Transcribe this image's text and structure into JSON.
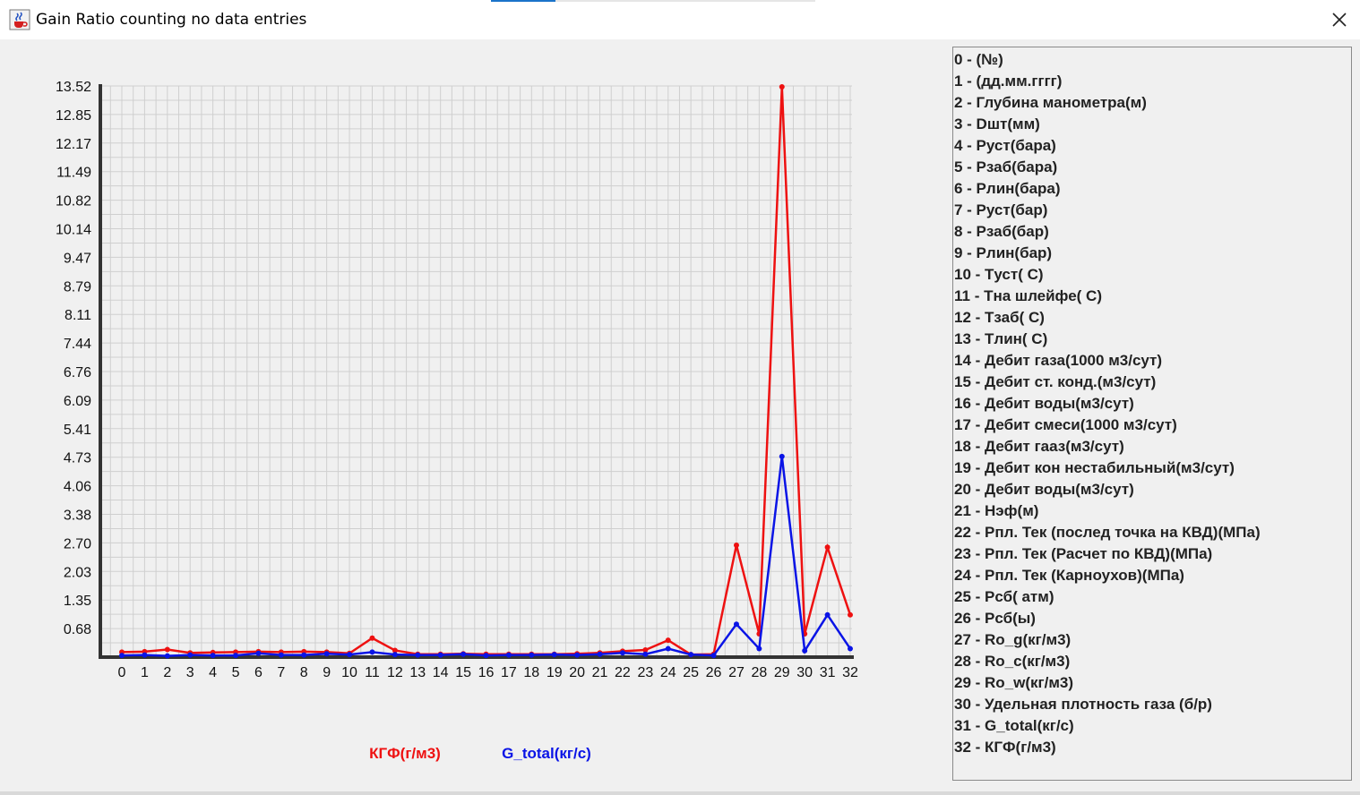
{
  "window": {
    "title": "Gain Ratio counting no data entries",
    "app_icon": "java-cup-icon",
    "close_icon": "close-x-icon"
  },
  "colors": {
    "series1": "#ee1111",
    "series2": "#0a14e6",
    "grid": "#cfcfcf",
    "axis": "#333333",
    "background": "#f0f0f0"
  },
  "chart_data": {
    "type": "line",
    "title": "",
    "xlabel": "",
    "ylabel": "",
    "grid": true,
    "legend_position": "bottom",
    "x": [
      0,
      1,
      2,
      3,
      4,
      5,
      6,
      7,
      8,
      9,
      10,
      11,
      12,
      13,
      14,
      15,
      16,
      17,
      18,
      19,
      20,
      21,
      22,
      23,
      24,
      25,
      26,
      27,
      28,
      29,
      30,
      31,
      32
    ],
    "ylim": [
      0,
      13.52
    ],
    "yticks": [
      "0.68",
      "1.35",
      "2.03",
      "2.70",
      "3.38",
      "4.06",
      "4.73",
      "5.41",
      "6.09",
      "6.76",
      "7.44",
      "8.11",
      "8.79",
      "9.47",
      "10.14",
      "10.82",
      "11.49",
      "12.17",
      "12.85",
      "13.52"
    ],
    "series": [
      {
        "name": "КГФ(г/м3)",
        "color": "#ee1111",
        "values": [
          0.12,
          0.13,
          0.18,
          0.1,
          0.11,
          0.12,
          0.13,
          0.12,
          0.13,
          0.12,
          0.09,
          0.45,
          0.16,
          0.07,
          0.07,
          0.08,
          0.07,
          0.07,
          0.07,
          0.07,
          0.08,
          0.1,
          0.14,
          0.17,
          0.4,
          0.06,
          0.07,
          2.65,
          0.55,
          13.5,
          0.55,
          2.6,
          1.0
        ]
      },
      {
        "name": "G_total(кг/с)",
        "color": "#0a14e6",
        "values": [
          0.04,
          0.05,
          0.03,
          0.05,
          0.04,
          0.04,
          0.09,
          0.05,
          0.05,
          0.08,
          0.06,
          0.12,
          0.06,
          0.05,
          0.05,
          0.07,
          0.04,
          0.05,
          0.05,
          0.06,
          0.05,
          0.07,
          0.1,
          0.07,
          0.2,
          0.06,
          0.04,
          0.78,
          0.2,
          4.75,
          0.15,
          1.0,
          0.2
        ]
      }
    ]
  },
  "attribute_legend": [
    "0 - (№)",
    "1 - (дд.мм.гггг)",
    "2 - Глубина манометра(м)",
    "3 - Dшт(мм)",
    "4 - Pуст(бара)",
    "5 - Pзаб(бара)",
    "6 - Pлин(бара)",
    "7 - Pуст(бар)",
    "8 - Pзаб(бар)",
    "9 - Pлин(бар)",
    "10 - Tуст( C)",
    "11 - Tна шлейфе( C)",
    "12 - Tзаб( C)",
    "13 - Tлин( C)",
    "14 - Дебит газа(1000 м3/сут)",
    "15 - Дебит ст. конд.(м3/сут)",
    "16 - Дебит воды(м3/сут)",
    "17 - Дебит смеси(1000 м3/сут)",
    "18 - Дебит гааз(м3/сут)",
    "19 - Дебит кон нестабильный(м3/сут)",
    "20 - Дебит воды(м3/сут)",
    "21 - Нэф(м)",
    "22 - Pпл. Тек (послед точка на КВД)(МПа)",
    "23 - Pпл. Тек (Расчет по КВД)(МПа)",
    "24 - Pпл. Тек (Карноухов)(МПа)",
    "25 - Pсб( атм)",
    "26 - Pсб(ы)",
    "27 - Ro_g(кг/м3)",
    "28 - Ro_c(кг/м3)",
    "29 - Ro_w(кг/м3)",
    "30 - Удельная плотность газа (б/р)",
    "31 - G_total(кг/с)",
    "32 - КГФ(г/м3)"
  ]
}
